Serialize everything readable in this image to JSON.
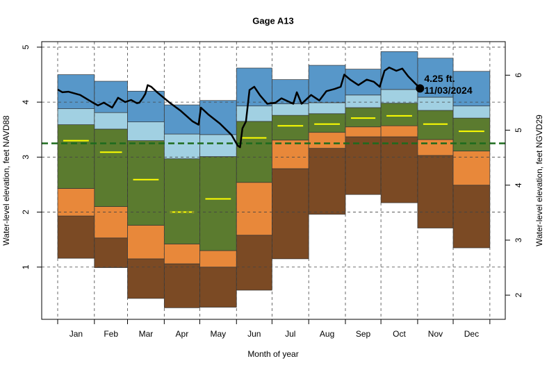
{
  "chart_data": {
    "type": "band",
    "title": "Gage A13",
    "xlabel": "Month of year",
    "ylabel": "Water-level elevation, feet NAVD88",
    "y2label": "Water-level elevation, feet NGVD29",
    "categories": [
      "Jan",
      "Feb",
      "Mar",
      "Apr",
      "May",
      "Jun",
      "Jul",
      "Aug",
      "Sep",
      "Oct",
      "Nov",
      "Dec"
    ],
    "xlim": [
      -12.5,
      379
    ],
    "xticks": [
      1,
      32,
      60,
      91,
      121,
      152,
      182,
      213,
      244,
      274,
      305,
      335,
      366
    ],
    "ylim": [
      0.05,
      5.1
    ],
    "yticks": [
      1,
      2,
      3,
      4,
      5
    ],
    "y2lim": [
      1.56,
      6.61
    ],
    "y2ticks": [
      2,
      3,
      4,
      5,
      6
    ],
    "grid": true,
    "percentiles": [
      [
        1.16,
        0.99,
        0.43,
        0.26,
        0.27,
        0.58,
        1.15,
        1.96,
        2.32,
        2.17,
        1.71,
        1.35
      ],
      [
        1.93,
        1.53,
        1.15,
        1.06,
        1.0,
        1.58,
        2.79,
        3.16,
        3.37,
        3.37,
        3.03,
        2.49
      ],
      [
        2.43,
        2.1,
        1.76,
        1.42,
        1.3,
        2.54,
        3.31,
        3.45,
        3.55,
        3.57,
        3.32,
        3.11
      ],
      [
        3.59,
        3.51,
        3.3,
        2.97,
        3.01,
        3.65,
        3.76,
        3.79,
        3.9,
        3.98,
        3.85,
        3.71
      ],
      [
        3.88,
        3.81,
        3.64,
        3.42,
        3.41,
        3.93,
        3.97,
        3.99,
        4.13,
        4.23,
        4.09,
        3.93
      ],
      [
        4.5,
        4.38,
        4.2,
        3.95,
        4.03,
        4.62,
        4.41,
        4.67,
        4.6,
        4.92,
        4.8,
        4.56
      ]
    ],
    "band_colors": [
      "#7b4a24",
      "#e8883a",
      "#5b7b2f",
      "#a1d0e2",
      "#5797c9"
    ],
    "median": [
      3.3,
      3.09,
      2.59,
      2.0,
      2.24,
      3.35,
      3.57,
      3.6,
      3.71,
      3.75,
      3.6,
      3.47
    ],
    "median_color": "#ffff00",
    "ref_line": 3.25,
    "ref_color": "#1d6b1d",
    "line": {
      "color": "#000000",
      "x": [
        1,
        5,
        10,
        20,
        30,
        35,
        40,
        47,
        52,
        58,
        63,
        68,
        70,
        73,
        75,
        77,
        80,
        85,
        95,
        105,
        115,
        120,
        122,
        128,
        138,
        148,
        153,
        155,
        157,
        160,
        163,
        167,
        172,
        178,
        185,
        190,
        200,
        203,
        207,
        215,
        222,
        228,
        235,
        240,
        243,
        248,
        255,
        262,
        268,
        273,
        277,
        281,
        287,
        292,
        297,
        303,
        307
      ],
      "values": [
        4.23,
        4.18,
        4.19,
        4.13,
        4.0,
        3.94,
        3.99,
        3.9,
        4.08,
        4.0,
        4.04,
        3.98,
        3.99,
        4.08,
        4.15,
        4.31,
        4.28,
        4.18,
        4.0,
        3.84,
        3.65,
        3.59,
        3.9,
        3.78,
        3.61,
        3.4,
        3.21,
        3.18,
        3.52,
        3.65,
        4.22,
        4.28,
        4.12,
        3.97,
        3.99,
        4.07,
        3.97,
        4.18,
        3.97,
        4.13,
        4.03,
        4.2,
        4.24,
        4.28,
        4.5,
        4.41,
        4.31,
        4.41,
        4.37,
        4.28,
        4.57,
        4.63,
        4.57,
        4.61,
        4.47,
        4.34,
        4.25
      ]
    },
    "marker": {
      "x": 307,
      "y": 4.25,
      "label": "4.25 ft.",
      "date": "11/03/2024"
    }
  }
}
